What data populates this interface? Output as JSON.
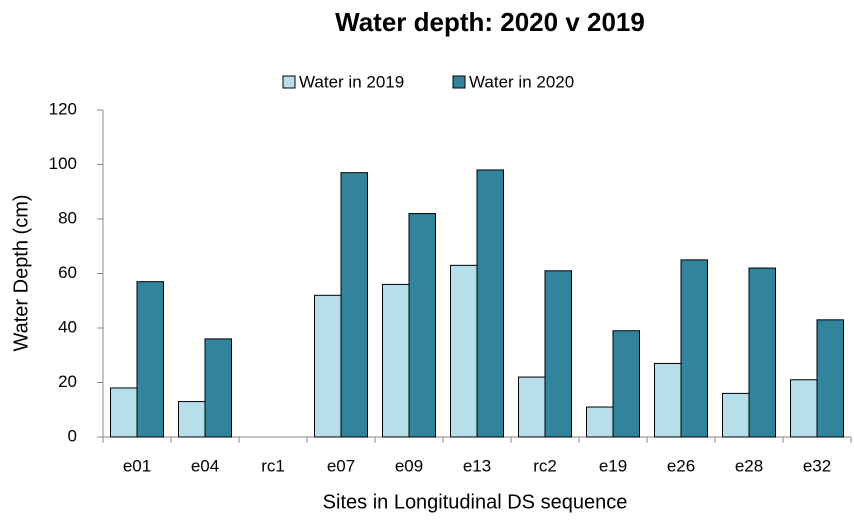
{
  "chart_data": {
    "type": "bar",
    "title": "Water depth:  2020 v 2019",
    "x_label": "Sites in Longitudinal DS sequence",
    "y_label": "Water Depth (cm)",
    "categories": [
      "e01",
      "e04",
      "rc1",
      "e07",
      "e09",
      "e13",
      "rc2",
      "e19",
      "e26",
      "e28",
      "e32"
    ],
    "series": [
      {
        "name": "Water in 2019",
        "color": "#b7dfe9",
        "values": [
          18,
          13,
          null,
          52,
          56,
          63,
          22,
          11,
          27,
          16,
          21
        ]
      },
      {
        "name": "Water in 2020",
        "color": "#31849b",
        "values": [
          57,
          36,
          null,
          97,
          82,
          98,
          61,
          39,
          65,
          62,
          43
        ]
      }
    ],
    "ylim": [
      0,
      120
    ],
    "yticks": [
      0,
      20,
      40,
      60,
      80,
      100,
      120
    ],
    "grid": false,
    "legend": "top"
  }
}
